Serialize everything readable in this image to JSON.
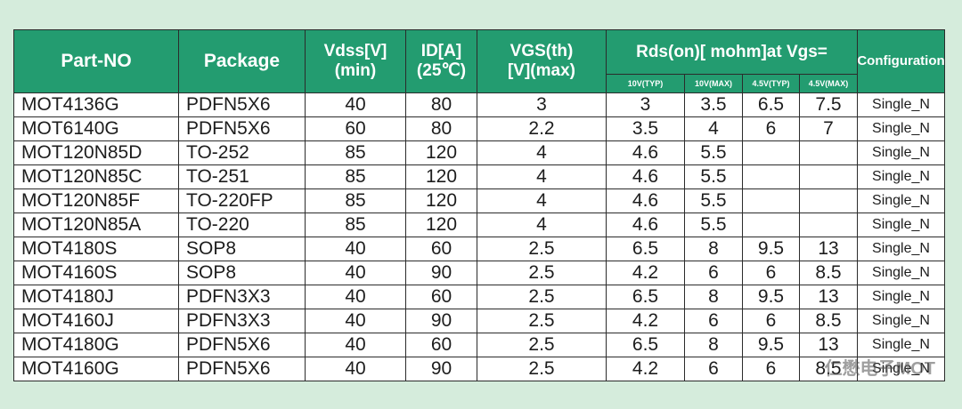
{
  "header": {
    "columns": [
      [
        "Part-NO"
      ],
      [
        "Package"
      ],
      [
        "Vdss[V]",
        "(min)"
      ],
      [
        "ID[A]",
        "(25℃)"
      ],
      [
        "VGS(th)",
        "[V](max)"
      ],
      [
        "Rds(on)[ mohm]at Vgs="
      ],
      [
        "Configuration"
      ]
    ],
    "rds_subcolumns": [
      "10V(TYP)",
      "10V(MAX)",
      "4.5V(TYP)",
      "4.5V(MAX)"
    ]
  },
  "table": {
    "rows": [
      [
        "MOT4136G",
        "PDFN5X6",
        40,
        80,
        3,
        3,
        3.5,
        6.5,
        7.5,
        "Single_N"
      ],
      [
        "MOT6140G",
        "PDFN5X6",
        60,
        80,
        2.2,
        3.5,
        4,
        6,
        7,
        "Single_N"
      ],
      [
        "MOT120N85D",
        "TO-252",
        85,
        120,
        4,
        4.6,
        5.5,
        null,
        null,
        "Single_N"
      ],
      [
        "MOT120N85C",
        "TO-251",
        85,
        120,
        4,
        4.6,
        5.5,
        null,
        null,
        "Single_N"
      ],
      [
        "MOT120N85F",
        "TO-220FP",
        85,
        120,
        4,
        4.6,
        5.5,
        null,
        null,
        "Single_N"
      ],
      [
        "MOT120N85A",
        "TO-220",
        85,
        120,
        4,
        4.6,
        5.5,
        null,
        null,
        "Single_N"
      ],
      [
        "MOT4180S",
        "SOP8",
        40,
        60,
        2.5,
        6.5,
        8,
        9.5,
        13,
        "Single_N"
      ],
      [
        "MOT4160S",
        "SOP8",
        40,
        90,
        2.5,
        4.2,
        6,
        6,
        8.5,
        "Single_N"
      ],
      [
        "MOT4180J",
        "PDFN3X3",
        40,
        60,
        2.5,
        6.5,
        8,
        9.5,
        13,
        "Single_N"
      ],
      [
        "MOT4160J",
        "PDFN3X3",
        40,
        90,
        2.5,
        4.2,
        6,
        6,
        8.5,
        "Single_N"
      ],
      [
        "MOT4180G",
        "PDFN5X6",
        40,
        60,
        2.5,
        6.5,
        8,
        9.5,
        13,
        "Single_N"
      ],
      [
        "MOT4160G",
        "PDFN5X6",
        40,
        90,
        2.5,
        4.2,
        6,
        6,
        8.5,
        "Single_N"
      ]
    ]
  },
  "watermark": "仁懋电子MOT"
}
